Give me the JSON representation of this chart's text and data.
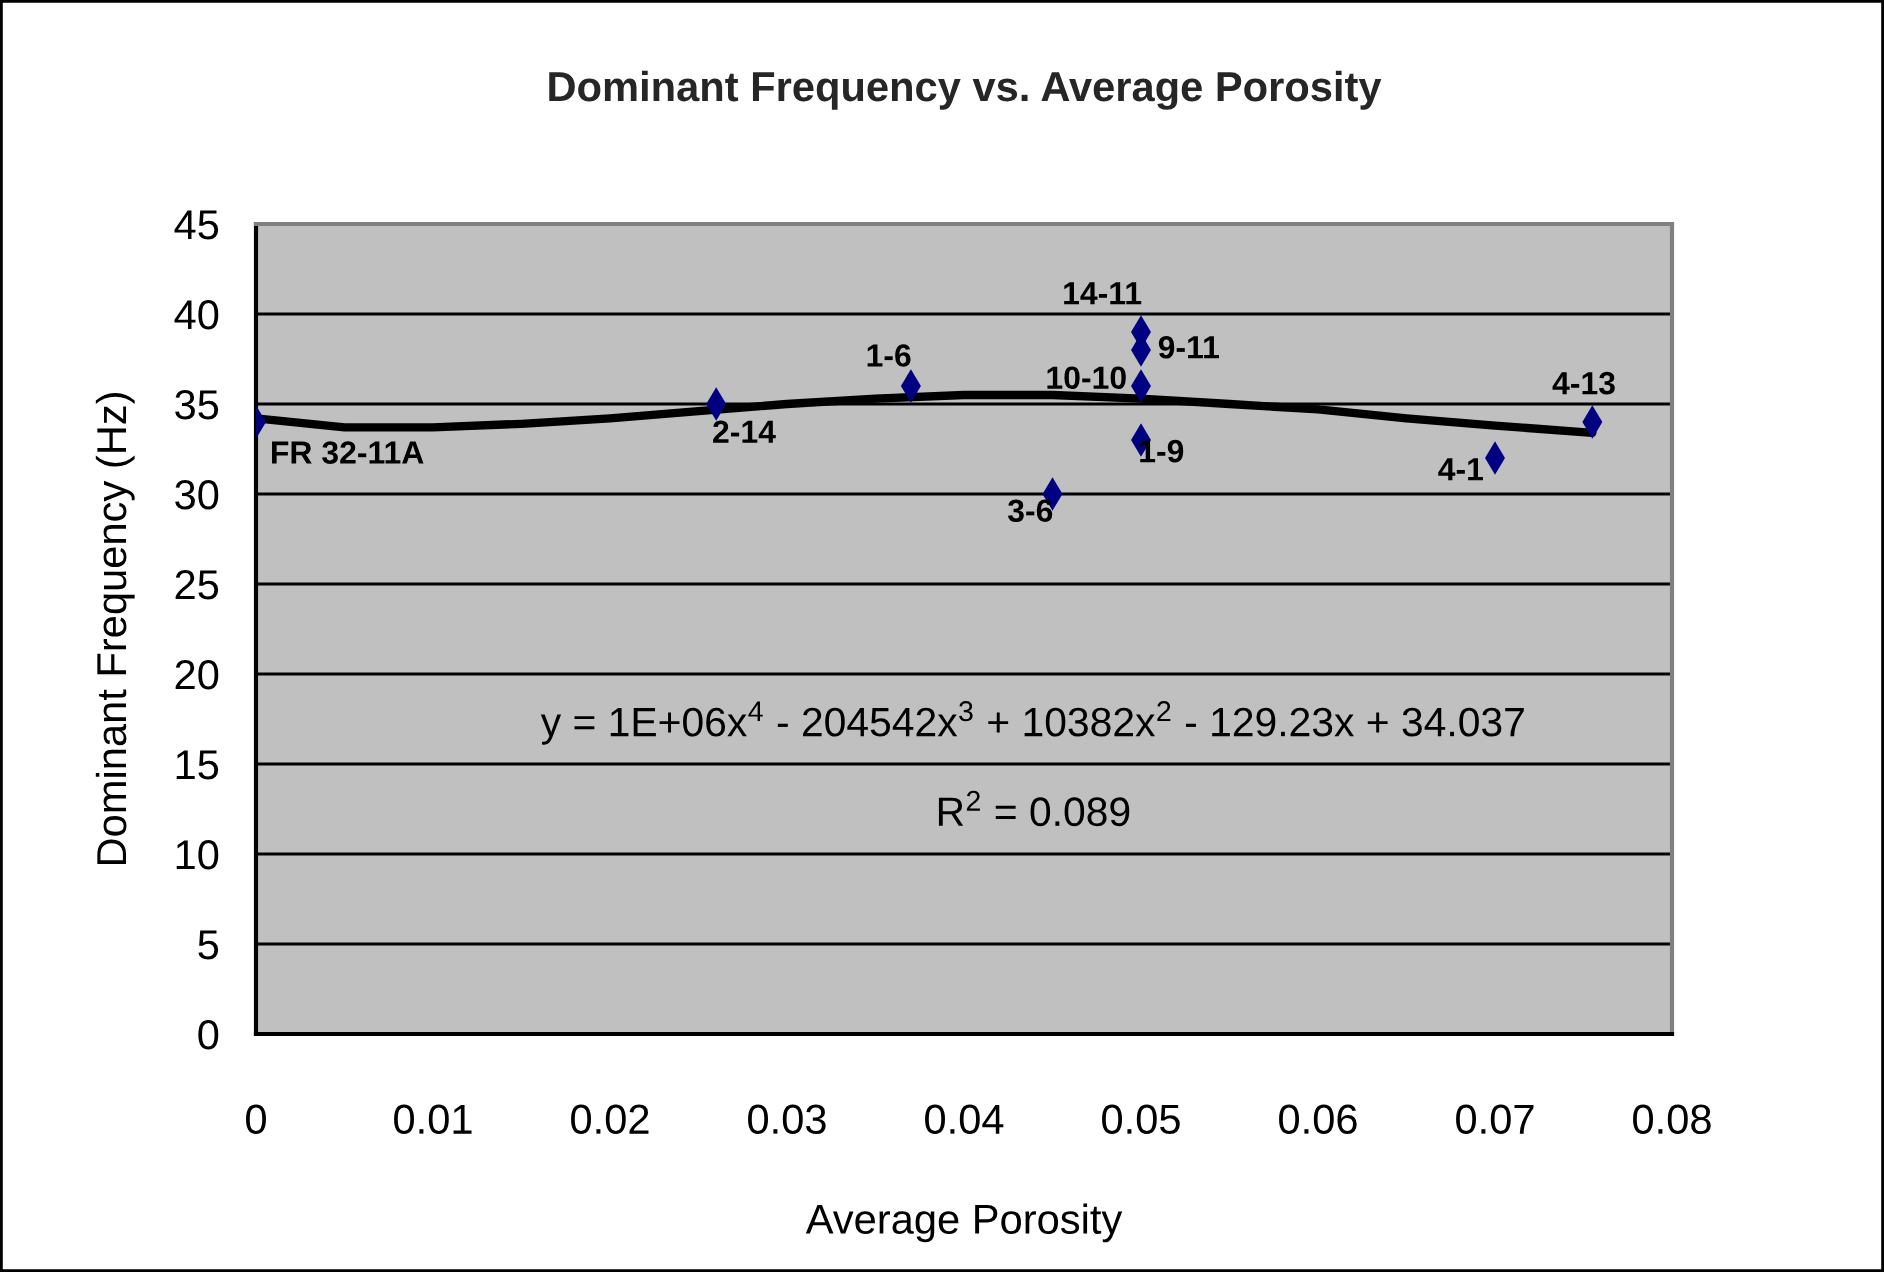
{
  "chart_data": {
    "type": "scatter",
    "title": "Dominant Frequency vs. Average Porosity",
    "xlabel": "Average Porosity",
    "ylabel": "Dominant Frequency (Hz)",
    "marker": "diamond",
    "grid": "y",
    "series": [
      {
        "color": "#000080",
        "x": [
          0,
          0.026,
          0.037,
          0.05,
          0.05,
          0.05,
          0.05,
          0.045,
          0.07,
          0.0755
        ],
        "values": [
          34,
          35,
          36,
          39,
          38,
          36,
          33,
          30,
          32,
          34
        ]
      },
      {
        "type": "line",
        "color": "#000000",
        "marker": "none",
        "line_style": "solid",
        "x": [
          0,
          0.005,
          0.01,
          0.015,
          0.02,
          0.025,
          0.03,
          0.035,
          0.04,
          0.045,
          0.05,
          0.055,
          0.06,
          0.065,
          0.07,
          0.0755
        ],
        "values": [
          34.2,
          33.7,
          33.7,
          33.9,
          34.2,
          34.6,
          35.0,
          35.3,
          35.5,
          35.5,
          35.3,
          35.0,
          34.7,
          34.2,
          33.8,
          33.4
        ]
      }
    ],
    "xlim": [
      0,
      0.08
    ],
    "xticks": [
      0,
      0.01,
      0.02,
      0.03,
      0.04,
      0.05,
      0.06,
      0.07,
      0.08
    ],
    "ylim": [
      0,
      45
    ],
    "yticks": [
      0,
      5,
      10,
      15,
      20,
      25,
      30,
      35,
      40,
      45
    ],
    "annotations": [
      {
        "text": "FR 32-11A",
        "x": 0,
        "y": 34
      },
      {
        "text": "2-14",
        "x": 0.026,
        "y": 35
      },
      {
        "text": "1-6",
        "x": 0.037,
        "y": 36
      },
      {
        "text": "14-11",
        "x": 0.05,
        "y": 39
      },
      {
        "text": "9-11",
        "x": 0.05,
        "y": 38
      },
      {
        "text": "10-10",
        "x": 0.05,
        "y": 36
      },
      {
        "text": "1-9",
        "x": 0.05,
        "y": 33
      },
      {
        "text": "3-6",
        "x": 0.045,
        "y": 30
      },
      {
        "text": "4-1",
        "x": 0.07,
        "y": 32
      },
      {
        "text": "4-13",
        "x": 0.0755,
        "y": 34
      },
      "y = 1E+06x$^{4}$ - 204542x$^{3}$ + 10382x$^{2}$ - 129.23x + 34.037",
      "R$^{2}$ = 0.089"
    ]
  }
}
